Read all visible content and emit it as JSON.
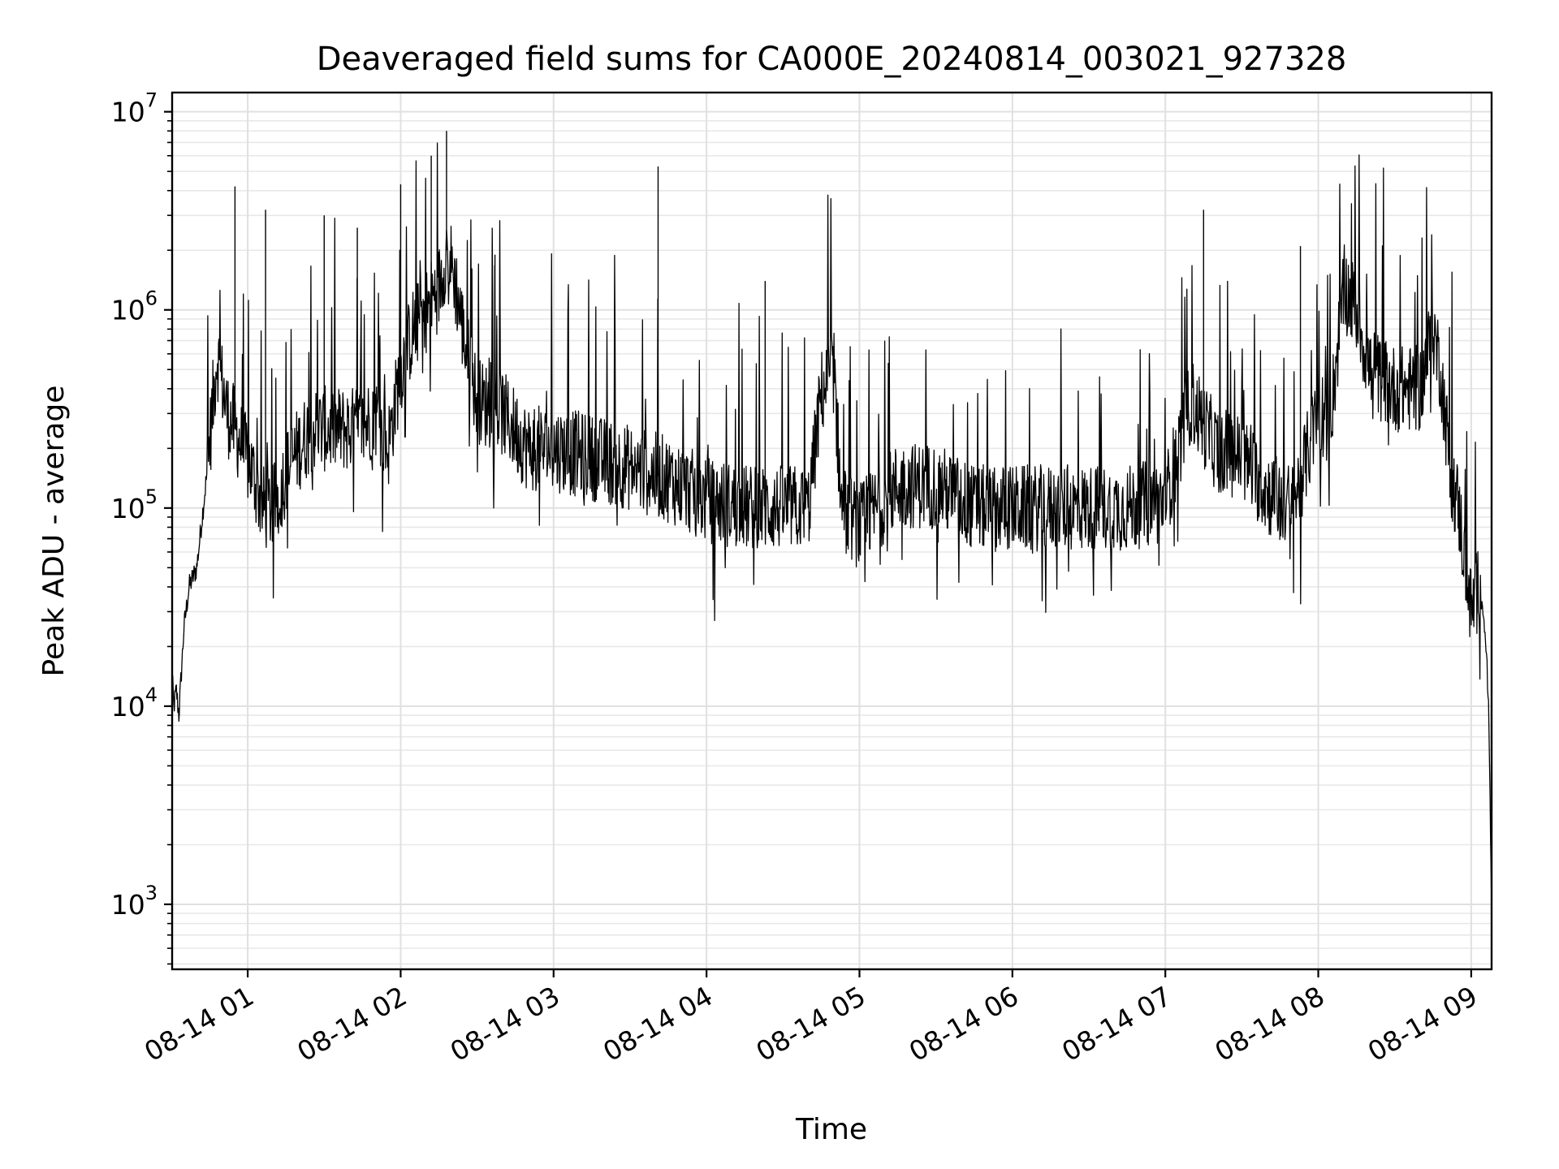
{
  "chart_data": {
    "type": "line",
    "title": "Deaveraged field sums for CA000E_20240814_003021_927328",
    "xlabel": "Time",
    "ylabel": "Peak ADU - average",
    "yscale": "log",
    "ylim": [
      470,
      12500000
    ],
    "xlim": [
      "2024-08-14T00:30:21",
      "2024-08-14T09:08:00"
    ],
    "grid": true,
    "x_ticks": [
      "2024-08-14T01:00",
      "2024-08-14T02:00",
      "2024-08-14T03:00",
      "2024-08-14T04:00",
      "2024-08-14T05:00",
      "2024-08-14T06:00",
      "2024-08-14T07:00",
      "2024-08-14T08:00",
      "2024-08-14T09:00"
    ],
    "x_tick_labels": [
      "08-14 01",
      "08-14 02",
      "08-14 03",
      "08-14 04",
      "08-14 05",
      "08-14 06",
      "08-14 07",
      "08-14 08",
      "08-14 09"
    ],
    "y_ticks": [
      1000,
      10000,
      100000,
      1000000,
      10000000
    ],
    "y_tick_labels": [
      {
        "base": "10",
        "exp": "3"
      },
      {
        "base": "10",
        "exp": "4"
      },
      {
        "base": "10",
        "exp": "5"
      },
      {
        "base": "10",
        "exp": "6"
      },
      {
        "base": "10",
        "exp": "7"
      }
    ],
    "series": [
      {
        "color": "#000000",
        "x": [
          "2024-08-14T00:30",
          "2024-08-14T00:31",
          "2024-08-14T00:32",
          "2024-08-14T00:33",
          "2024-08-14T00:35",
          "2024-08-14T00:37",
          "2024-08-14T00:40",
          "2024-08-14T00:44",
          "2024-08-14T00:48",
          "2024-08-14T00:52",
          "2024-08-14T00:55",
          "2024-08-14T00:58",
          "2024-08-14T01:02",
          "2024-08-14T01:06",
          "2024-08-14T01:10",
          "2024-08-14T01:15",
          "2024-08-14T01:20",
          "2024-08-14T01:25",
          "2024-08-14T01:30",
          "2024-08-14T01:35",
          "2024-08-14T01:40",
          "2024-08-14T01:45",
          "2024-08-14T01:50",
          "2024-08-14T01:55",
          "2024-08-14T02:00",
          "2024-08-14T02:05",
          "2024-08-14T02:10",
          "2024-08-14T02:15",
          "2024-08-14T02:18",
          "2024-08-14T02:21",
          "2024-08-14T02:25",
          "2024-08-14T02:30",
          "2024-08-14T02:40",
          "2024-08-14T02:50",
          "2024-08-14T03:00",
          "2024-08-14T03:15",
          "2024-08-14T03:30",
          "2024-08-14T03:45",
          "2024-08-14T04:00",
          "2024-08-14T04:15",
          "2024-08-14T04:30",
          "2024-08-14T04:40",
          "2024-08-14T04:45",
          "2024-08-14T04:50",
          "2024-08-14T04:53",
          "2024-08-14T05:00",
          "2024-08-14T05:15",
          "2024-08-14T05:30",
          "2024-08-14T05:45",
          "2024-08-14T06:00",
          "2024-08-14T06:15",
          "2024-08-14T06:30",
          "2024-08-14T06:45",
          "2024-08-14T07:00",
          "2024-08-14T07:10",
          "2024-08-14T07:20",
          "2024-08-14T07:30",
          "2024-08-14T07:40",
          "2024-08-14T07:50",
          "2024-08-14T08:00",
          "2024-08-14T08:05",
          "2024-08-14T08:10",
          "2024-08-14T08:15",
          "2024-08-14T08:20",
          "2024-08-14T08:30",
          "2024-08-14T08:40",
          "2024-08-14T08:45",
          "2024-08-14T08:48",
          "2024-08-14T08:52",
          "2024-08-14T08:55",
          "2024-08-14T09:00",
          "2024-08-14T09:03",
          "2024-08-14T09:05",
          "2024-08-14T09:06",
          "2024-08-14T09:07",
          "2024-08-14T09:08"
        ],
        "y": [
          17000,
          10000,
          12000,
          9000,
          25000,
          40000,
          50000,
          150000,
          600000,
          300000,
          250000,
          200000,
          150000,
          100000,
          100000,
          150000,
          200000,
          250000,
          250000,
          250000,
          250000,
          250000,
          300000,
          200000,
          500000,
          800000,
          1000000,
          1300000,
          2000000,
          1500000,
          700000,
          350000,
          300000,
          200000,
          200000,
          180000,
          160000,
          140000,
          110000,
          100000,
          100000,
          100000,
          380000,
          500000,
          100000,
          80000,
          130000,
          130000,
          100000,
          100000,
          100000,
          100000,
          100000,
          110000,
          350000,
          200000,
          180000,
          120000,
          100000,
          300000,
          300000,
          1300000,
          1000000,
          500000,
          400000,
          400000,
          800000,
          500000,
          150000,
          100000,
          30000,
          40000,
          30000,
          18000,
          8000,
          1000
        ],
        "spikes": [
          {
            "x": "2024-08-14T00:55",
            "y": 4200000
          },
          {
            "x": "2024-08-14T01:07",
            "y": 3200000
          },
          {
            "x": "2024-08-14T01:30",
            "y": 3000000
          },
          {
            "x": "2024-08-14T01:43",
            "y": 2600000
          },
          {
            "x": "2024-08-14T02:00",
            "y": 4300000
          },
          {
            "x": "2024-08-14T02:12",
            "y": 6000000
          },
          {
            "x": "2024-08-14T02:18",
            "y": 8000000
          },
          {
            "x": "2024-08-14T02:37",
            "y": 1900000
          },
          {
            "x": "2024-08-14T03:41",
            "y": 5300000
          },
          {
            "x": "2024-08-14T04:23",
            "y": 1400000
          },
          {
            "x": "2024-08-14T07:15",
            "y": 3200000
          },
          {
            "x": "2024-08-14T07:53",
            "y": 2100000
          }
        ]
      }
    ]
  }
}
